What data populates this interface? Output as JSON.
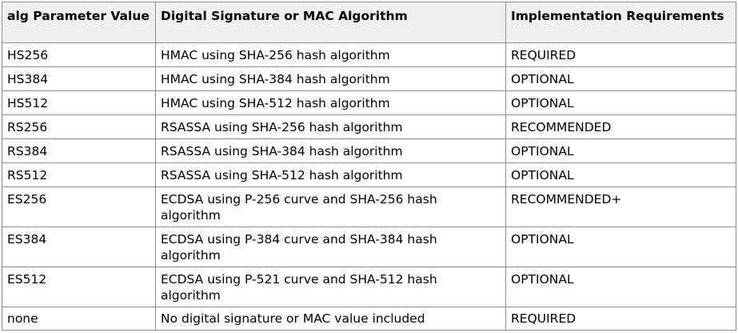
{
  "table": {
    "headers": [
      "alg Parameter Value",
      "Digital Signature or MAC Algorithm",
      "Implementation Requirements"
    ],
    "rows": [
      {
        "alg": "HS256",
        "algorithm": "HMAC using SHA-256 hash algorithm",
        "requirement": "REQUIRED"
      },
      {
        "alg": "HS384",
        "algorithm": "HMAC using SHA-384 hash algorithm",
        "requirement": "OPTIONAL"
      },
      {
        "alg": "HS512",
        "algorithm": "HMAC using SHA-512 hash algorithm",
        "requirement": "OPTIONAL"
      },
      {
        "alg": "RS256",
        "algorithm": "RSASSA using SHA-256 hash algorithm",
        "requirement": "RECOMMENDED"
      },
      {
        "alg": "RS384",
        "algorithm": "RSASSA using SHA-384 hash algorithm",
        "requirement": "OPTIONAL"
      },
      {
        "alg": "RS512",
        "algorithm": "RSASSA using SHA-512 hash algorithm",
        "requirement": "OPTIONAL"
      },
      {
        "alg": "ES256",
        "algorithm": "ECDSA using P-256 curve and SHA-256 hash algorithm",
        "requirement": "RECOMMENDED+"
      },
      {
        "alg": "ES384",
        "algorithm": "ECDSA using P-384 curve and SHA-384 hash algorithm",
        "requirement": "OPTIONAL"
      },
      {
        "alg": "ES512",
        "algorithm": "ECDSA using P-521 curve and SHA-512 hash algorithm",
        "requirement": "OPTIONAL"
      },
      {
        "alg": "none",
        "algorithm": "No digital signature or MAC value included",
        "requirement": "REQUIRED"
      }
    ]
  }
}
